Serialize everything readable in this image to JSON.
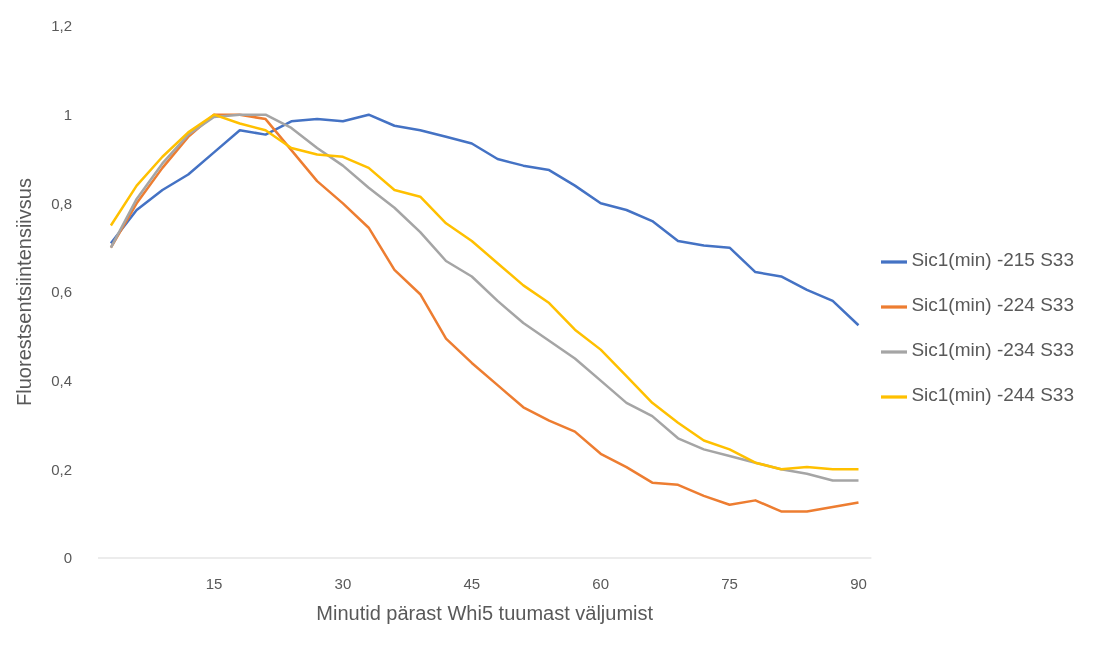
{
  "chart_data": {
    "type": "line",
    "xlabel": "Minutid pärast Whi5 tuumast väljumist",
    "ylabel": "Fluorestsentsiintensiivsus",
    "x": [
      3,
      6,
      9,
      12,
      15,
      18,
      21,
      24,
      27,
      30,
      33,
      36,
      39,
      42,
      45,
      48,
      51,
      54,
      57,
      60,
      63,
      66,
      69,
      72,
      75,
      78,
      81,
      84,
      87,
      90
    ],
    "xlim": [
      1.5,
      91.5
    ],
    "xticks": [
      15,
      30,
      45,
      60,
      75,
      90
    ],
    "ylim": [
      0,
      1.2
    ],
    "yticks": [
      0,
      {
        "value": 0.2,
        "label": "0,2"
      },
      {
        "value": 0.4,
        "label": "0,4"
      },
      {
        "value": 0.6,
        "label": "0,6"
      },
      {
        "value": 0.8,
        "label": "0,8"
      },
      1,
      {
        "value": 1.2,
        "label": "1,2"
      }
    ],
    "grid": false,
    "legend": "right",
    "marker": "none",
    "line_style": "solid",
    "series": [
      {
        "name": "Sic1(min) -215 S33",
        "color": "#4472c4",
        "values": [
          0.71,
          0.785,
          0.83,
          0.865,
          0.915,
          0.965,
          0.955,
          0.985,
          0.99,
          0.985,
          1.0,
          0.975,
          0.965,
          0.95,
          0.935,
          0.9,
          0.885,
          0.875,
          0.84,
          0.8,
          0.785,
          0.76,
          0.715,
          0.705,
          0.7,
          0.645,
          0.635,
          0.605,
          0.58,
          0.525
        ]
      },
      {
        "name": "Sic1(min) -224 S33",
        "color": "#ed7d31",
        "values": [
          0.7,
          0.8,
          0.88,
          0.95,
          1.0,
          1.0,
          0.99,
          0.92,
          0.85,
          0.8,
          0.745,
          0.65,
          0.595,
          0.495,
          0.44,
          0.39,
          0.34,
          0.31,
          0.285,
          0.235,
          0.205,
          0.17,
          0.165,
          0.14,
          0.12,
          0.13,
          0.105,
          0.105,
          0.115,
          0.125
        ]
      },
      {
        "name": "Sic1(min) -234 S33",
        "color": "#a5a5a5",
        "values": [
          0.7,
          0.81,
          0.89,
          0.955,
          0.995,
          1.0,
          1.0,
          0.97,
          0.925,
          0.885,
          0.835,
          0.79,
          0.735,
          0.67,
          0.635,
          0.58,
          0.53,
          0.49,
          0.45,
          0.4,
          0.35,
          0.32,
          0.27,
          0.245,
          0.23,
          0.215,
          0.2,
          0.19,
          0.175,
          0.175
        ]
      },
      {
        "name": "Sic1(min) -244 S33",
        "color": "#ffc000",
        "values": [
          0.75,
          0.84,
          0.905,
          0.96,
          1.0,
          0.98,
          0.965,
          0.925,
          0.91,
          0.905,
          0.88,
          0.83,
          0.815,
          0.755,
          0.715,
          0.665,
          0.615,
          0.575,
          0.515,
          0.47,
          0.41,
          0.35,
          0.305,
          0.265,
          0.245,
          0.215,
          0.2,
          0.205,
          0.2,
          0.2
        ]
      }
    ]
  }
}
